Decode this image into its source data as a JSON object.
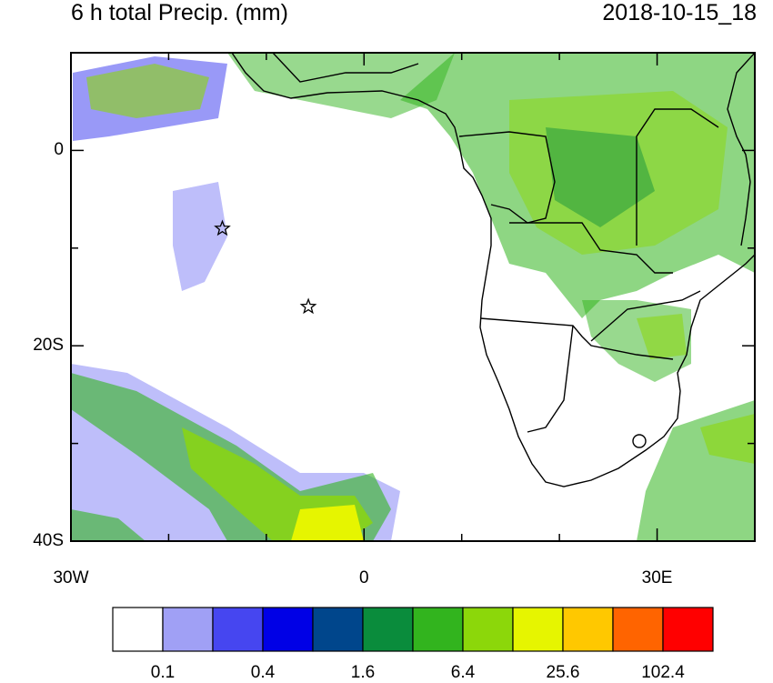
{
  "title": "6 h total Precip. (mm)",
  "valid_time": "2018-10-15_18",
  "axes": {
    "x_ticks": [
      {
        "lon": -30,
        "label": "30W"
      },
      {
        "lon": 0,
        "label": "0"
      },
      {
        "lon": 30,
        "label": "30E"
      }
    ],
    "y_ticks": [
      {
        "lat": 0,
        "label": "0"
      },
      {
        "lat": -20,
        "label": "20S"
      },
      {
        "lat": -40,
        "label": "40S"
      }
    ],
    "lon_range": [
      -30,
      40
    ],
    "lat_range": [
      -40,
      10
    ]
  },
  "colorbar": {
    "colors": [
      "#ffffff",
      "#a0a0f5",
      "#4646f0",
      "#0000e6",
      "#00468c",
      "#0a8c3c",
      "#32b41e",
      "#8cd70a",
      "#e6f500",
      "#ffc800",
      "#ff6400",
      "#ff0000"
    ],
    "labels": [
      "0.1",
      "0.4",
      "1.6",
      "6.4",
      "25.6",
      "102.4"
    ]
  },
  "markers": [
    {
      "type": "star",
      "lon": -14.5,
      "lat": -8
    },
    {
      "type": "star",
      "lon": -5.7,
      "lat": -16
    }
  ]
}
